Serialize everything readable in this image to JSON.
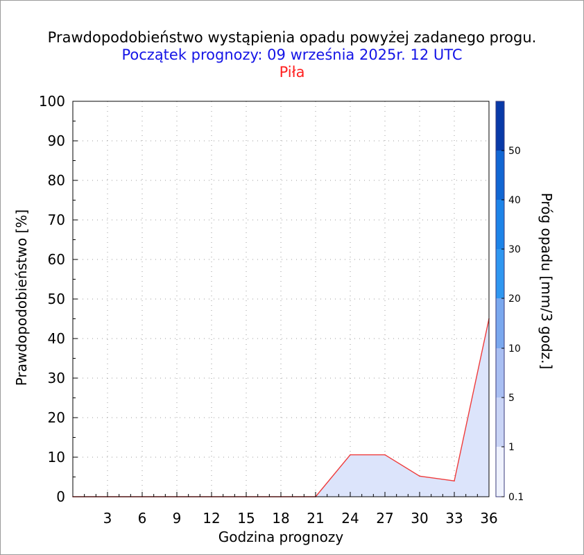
{
  "header": {
    "title": "Prawdopodobieństwo wystąpienia opadu powyżej zadanego progu.",
    "subtitle": "Początek prognozy: 09 września 2025r. 12 UTC",
    "station": "Piła"
  },
  "colors": {
    "title": "#000000",
    "subtitle": "#1414e6",
    "station": "#ff2020",
    "series_line": "#ef3b3b",
    "series_fill": "#dce4fb"
  },
  "chart_data": {
    "type": "area",
    "xlabel": "Godzina prognozy",
    "ylabel": "Prawdopodobieństwo [%]",
    "xlim": [
      0,
      36
    ],
    "ylim": [
      0,
      100
    ],
    "x_ticks": [
      3,
      6,
      9,
      12,
      15,
      18,
      21,
      24,
      27,
      30,
      33,
      36
    ],
    "y_ticks": [
      0,
      10,
      20,
      30,
      40,
      50,
      60,
      70,
      80,
      90,
      100
    ],
    "grid": true,
    "series": [
      {
        "x": [
          0,
          3,
          6,
          9,
          12,
          15,
          18,
          21,
          24,
          27,
          30,
          33,
          36
        ],
        "y": [
          0,
          0,
          0,
          0,
          0,
          0,
          0,
          0,
          10.6,
          10.6,
          5.2,
          4.0,
          45.0
        ]
      }
    ],
    "colorbar": {
      "label": "Próg opadu [mm/3 godz.]",
      "tick_labels": [
        "0.1",
        "1",
        "5",
        "10",
        "20",
        "30",
        "40",
        "50"
      ],
      "colors": [
        "#eff2fd",
        "#cad5f6",
        "#a9bff2",
        "#7aa8ee",
        "#2f97f0",
        "#1d84e8",
        "#1167d3",
        "#0a4dbd",
        "#083aa8"
      ]
    }
  }
}
